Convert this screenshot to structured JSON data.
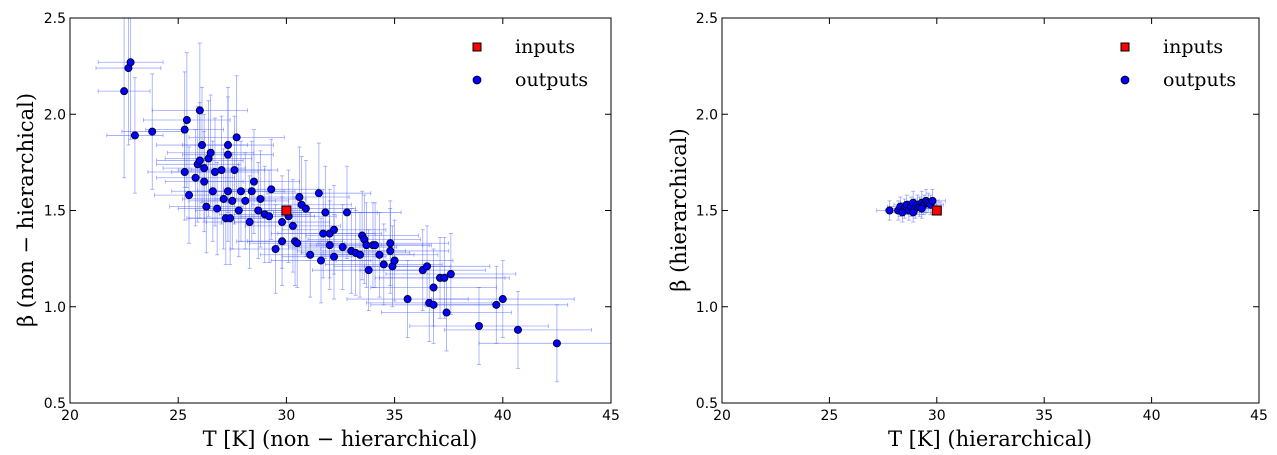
{
  "figure": {
    "panels": [
      {
        "xlabel": "T [K] (non − hierarchical)",
        "ylabel": "β (non − hierarchical)"
      },
      {
        "xlabel": "T [K] (hierarchical)",
        "ylabel": "β (hierarchical)"
      }
    ]
  },
  "chart_data": [
    {
      "type": "scatter",
      "xlabel": "T [K] (non − hierarchical)",
      "ylabel": "β (non − hierarchical)",
      "xlim": [
        20,
        45
      ],
      "ylim": [
        0.5,
        2.5
      ],
      "xticks": [
        "20",
        "25",
        "30",
        "35",
        "40",
        "45"
      ],
      "yticks": [
        "0.5",
        "1.0",
        "1.5",
        "2.0",
        "2.5"
      ],
      "grid": false,
      "legend_position": "top-right",
      "error_bars": true,
      "series": [
        {
          "name": "inputs",
          "marker": "square",
          "color": "#ff0000",
          "points": [
            [
              30.0,
              1.5
            ]
          ]
        },
        {
          "name": "outputs",
          "marker": "circle",
          "color": "#0000ff",
          "errorbar_color": "#4a5cff",
          "points": [
            [
              22.5,
              2.12,
              1.2,
              0.45
            ],
            [
              22.7,
              2.24,
              1.5,
              0.4
            ],
            [
              22.8,
              2.27,
              1.5,
              0.4
            ],
            [
              23.0,
              1.89,
              1.3,
              0.3
            ],
            [
              23.8,
              1.91,
              1.4,
              0.3
            ],
            [
              25.3,
              1.92,
              1.8,
              0.3
            ],
            [
              25.4,
              1.97,
              2.0,
              0.35
            ],
            [
              25.3,
              1.7,
              1.7,
              0.25
            ],
            [
              25.5,
              1.58,
              1.6,
              0.25
            ],
            [
              25.8,
              1.67,
              1.8,
              0.25
            ],
            [
              25.9,
              1.74,
              1.9,
              0.3
            ],
            [
              26.0,
              1.76,
              2.0,
              0.3
            ],
            [
              26.0,
              2.02,
              2.2,
              0.35
            ],
            [
              26.1,
              1.84,
              2.1,
              0.3
            ],
            [
              26.2,
              1.72,
              1.9,
              0.28
            ],
            [
              26.2,
              1.65,
              1.8,
              0.26
            ],
            [
              26.3,
              1.52,
              1.7,
              0.24
            ],
            [
              26.4,
              1.77,
              2.0,
              0.3
            ],
            [
              26.5,
              1.8,
              2.0,
              0.3
            ],
            [
              26.6,
              1.6,
              1.9,
              0.26
            ],
            [
              26.7,
              1.7,
              2.0,
              0.28
            ],
            [
              26.8,
              1.51,
              1.8,
              0.24
            ],
            [
              27.0,
              1.71,
              2.0,
              0.28
            ],
            [
              27.1,
              1.56,
              1.9,
              0.26
            ],
            [
              27.2,
              1.46,
              1.8,
              0.24
            ],
            [
              27.3,
              1.6,
              2.0,
              0.26
            ],
            [
              27.3,
              1.84,
              2.1,
              0.3
            ],
            [
              27.3,
              1.79,
              2.1,
              0.3
            ],
            [
              27.4,
              1.46,
              1.9,
              0.24
            ],
            [
              27.5,
              1.55,
              2.0,
              0.25
            ],
            [
              27.6,
              1.71,
              2.0,
              0.28
            ],
            [
              27.7,
              1.88,
              2.2,
              0.32
            ],
            [
              27.8,
              1.5,
              2.0,
              0.24
            ],
            [
              27.9,
              1.6,
              2.0,
              0.26
            ],
            [
              28.1,
              1.55,
              2.0,
              0.25
            ],
            [
              28.3,
              1.44,
              2.0,
              0.24
            ],
            [
              28.4,
              1.6,
              2.0,
              0.26
            ],
            [
              28.5,
              1.65,
              2.1,
              0.27
            ],
            [
              28.7,
              1.5,
              2.1,
              0.25
            ],
            [
              28.8,
              1.56,
              2.1,
              0.25
            ],
            [
              29.0,
              1.48,
              2.1,
              0.25
            ],
            [
              29.2,
              1.47,
              2.1,
              0.24
            ],
            [
              29.3,
              1.61,
              2.2,
              0.26
            ],
            [
              29.5,
              1.3,
              2.1,
              0.23
            ],
            [
              29.8,
              1.44,
              2.2,
              0.24
            ],
            [
              29.8,
              1.34,
              2.1,
              0.23
            ],
            [
              30.1,
              1.47,
              2.2,
              0.24
            ],
            [
              30.3,
              1.42,
              2.2,
              0.24
            ],
            [
              30.4,
              1.34,
              2.2,
              0.23
            ],
            [
              30.5,
              1.33,
              2.2,
              0.23
            ],
            [
              30.6,
              1.57,
              2.3,
              0.26
            ],
            [
              30.7,
              1.53,
              2.3,
              0.25
            ],
            [
              30.9,
              1.51,
              2.3,
              0.25
            ],
            [
              31.1,
              1.27,
              2.3,
              0.22
            ],
            [
              31.5,
              1.59,
              2.4,
              0.26
            ],
            [
              31.6,
              1.24,
              2.3,
              0.22
            ],
            [
              31.7,
              1.38,
              2.4,
              0.23
            ],
            [
              31.8,
              1.49,
              2.4,
              0.24
            ],
            [
              32.0,
              1.38,
              2.4,
              0.23
            ],
            [
              32.0,
              1.32,
              2.4,
              0.23
            ],
            [
              32.2,
              1.4,
              2.4,
              0.23
            ],
            [
              32.2,
              1.26,
              2.4,
              0.22
            ],
            [
              32.6,
              1.31,
              2.5,
              0.22
            ],
            [
              32.8,
              1.49,
              2.5,
              0.24
            ],
            [
              33.0,
              1.29,
              2.5,
              0.22
            ],
            [
              33.2,
              1.28,
              2.5,
              0.22
            ],
            [
              33.4,
              1.27,
              2.5,
              0.22
            ],
            [
              33.5,
              1.37,
              2.6,
              0.23
            ],
            [
              33.6,
              1.35,
              2.6,
              0.23
            ],
            [
              33.7,
              1.32,
              2.6,
              0.22
            ],
            [
              33.8,
              1.19,
              2.6,
              0.21
            ],
            [
              34.0,
              1.32,
              2.6,
              0.22
            ],
            [
              34.1,
              1.32,
              2.6,
              0.22
            ],
            [
              34.3,
              1.27,
              2.7,
              0.22
            ],
            [
              34.5,
              1.22,
              2.7,
              0.21
            ],
            [
              34.8,
              1.33,
              2.7,
              0.22
            ],
            [
              34.8,
              1.29,
              2.7,
              0.22
            ],
            [
              34.9,
              1.21,
              2.7,
              0.21
            ],
            [
              35.0,
              1.24,
              2.7,
              0.21
            ],
            [
              35.6,
              1.04,
              2.8,
              0.2
            ],
            [
              36.3,
              1.19,
              2.9,
              0.21
            ],
            [
              36.5,
              1.21,
              2.9,
              0.21
            ],
            [
              36.6,
              1.02,
              2.9,
              0.2
            ],
            [
              36.8,
              1.01,
              2.9,
              0.2
            ],
            [
              36.8,
              1.1,
              2.9,
              0.2
            ],
            [
              37.1,
              1.15,
              3.0,
              0.21
            ],
            [
              37.3,
              1.15,
              3.0,
              0.21
            ],
            [
              37.4,
              0.97,
              3.0,
              0.2
            ],
            [
              37.6,
              1.17,
              3.0,
              0.21
            ],
            [
              38.9,
              0.9,
              3.2,
              0.2
            ],
            [
              39.7,
              1.01,
              3.3,
              0.2
            ],
            [
              40.0,
              1.04,
              3.3,
              0.2
            ],
            [
              40.7,
              0.88,
              3.4,
              0.2
            ],
            [
              42.5,
              0.81,
              3.6,
              0.2
            ]
          ]
        }
      ]
    },
    {
      "type": "scatter",
      "xlabel": "T [K] (hierarchical)",
      "ylabel": "β (hierarchical)",
      "xlim": [
        20,
        45
      ],
      "ylim": [
        0.5,
        2.5
      ],
      "xticks": [
        "20",
        "25",
        "30",
        "35",
        "40",
        "45"
      ],
      "yticks": [
        "0.5",
        "1.0",
        "1.5",
        "2.0",
        "2.5"
      ],
      "grid": false,
      "legend_position": "top-right",
      "error_bars": true,
      "series": [
        {
          "name": "inputs",
          "marker": "square",
          "color": "#ff0000",
          "points": [
            [
              30.0,
              1.5
            ]
          ]
        },
        {
          "name": "outputs",
          "marker": "circle",
          "color": "#0000ff",
          "errorbar_color": "#4a5cff",
          "points": [
            [
              27.8,
              1.5,
              0.6,
              0.05
            ],
            [
              28.2,
              1.5,
              0.6,
              0.05
            ],
            [
              28.3,
              1.52,
              0.6,
              0.05
            ],
            [
              28.5,
              1.51,
              0.6,
              0.05
            ],
            [
              28.6,
              1.53,
              0.6,
              0.05
            ],
            [
              28.7,
              1.5,
              0.6,
              0.05
            ],
            [
              28.8,
              1.52,
              0.6,
              0.05
            ],
            [
              28.9,
              1.54,
              0.6,
              0.06
            ],
            [
              29.0,
              1.51,
              0.6,
              0.05
            ],
            [
              29.1,
              1.53,
              0.6,
              0.05
            ],
            [
              29.2,
              1.52,
              0.6,
              0.05
            ],
            [
              29.3,
              1.54,
              0.6,
              0.06
            ],
            [
              29.4,
              1.53,
              0.6,
              0.05
            ],
            [
              29.5,
              1.55,
              0.6,
              0.06
            ],
            [
              29.6,
              1.54,
              0.6,
              0.05
            ],
            [
              29.7,
              1.53,
              0.6,
              0.05
            ],
            [
              28.4,
              1.49,
              0.6,
              0.05
            ],
            [
              28.9,
              1.49,
              0.6,
              0.05
            ],
            [
              29.3,
              1.51,
              0.6,
              0.05
            ],
            [
              29.8,
              1.55,
              0.6,
              0.06
            ]
          ]
        }
      ]
    }
  ]
}
